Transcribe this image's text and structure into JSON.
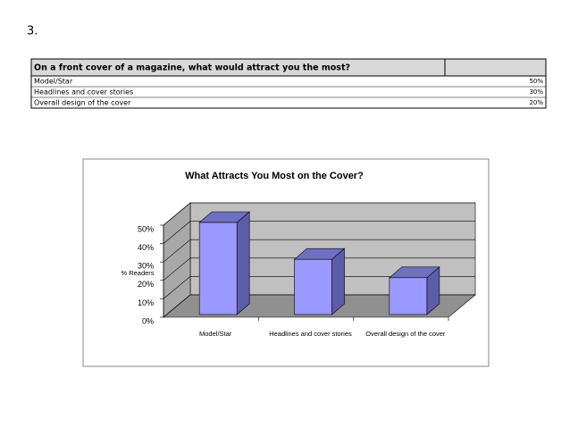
{
  "heading": "3.",
  "table": {
    "header": [
      "On a front cover of a magazine, what would attract you the most?",
      ""
    ],
    "rows": [
      [
        "Model/Star",
        "50%"
      ],
      [
        "Headlines and cover stories",
        "30%"
      ],
      [
        "Overall design of the cover",
        "20%"
      ]
    ]
  },
  "chart_data": {
    "type": "bar3d",
    "title": "What Attracts You Most on the Cover?",
    "y_label": "% Readers",
    "categories": [
      "Model/Star",
      "Headlines and cover stories",
      "Overall design of the cover"
    ],
    "values": [
      50,
      30,
      20
    ],
    "color": "#9999ff",
    "ylim": [
      0,
      50
    ],
    "yticks": [
      {
        "value": 0,
        "label": "0%"
      },
      {
        "value": 10,
        "label": "10%"
      },
      {
        "value": 20,
        "label": "20%"
      },
      {
        "value": 30,
        "label": "30%"
      },
      {
        "value": 40,
        "label": "40%"
      },
      {
        "value": 50,
        "label": "50%"
      }
    ],
    "grid": true
  }
}
